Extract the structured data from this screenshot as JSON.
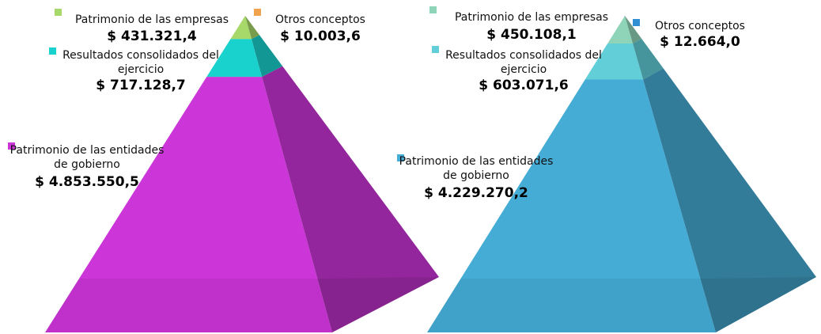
{
  "chart_data": [
    {
      "type": "pyramid",
      "categories": [
        "Otros conceptos",
        "Patrimonio de las empresas",
        "Resultados consolidados del ejercicio",
        "Patrimonio de las entidades de gobierno"
      ],
      "values": [
        10003.6,
        431321.4,
        717128.7,
        4853550.5
      ],
      "value_labels": [
        "$ 10.003,6",
        "$ 431.321,4",
        "$ 717.128,7",
        "$ 4.853.550,5"
      ],
      "colors": [
        "#f0a24e",
        "#a6d86a",
        "#19d2cd",
        "#cc35d8"
      ]
    },
    {
      "type": "pyramid",
      "categories": [
        "Otros conceptos",
        "Patrimonio de las empresas",
        "Resultados consolidados del ejercicio",
        "Patrimonio de las entidades de gobierno"
      ],
      "values": [
        12664.0,
        450108.1,
        603071.6,
        4229270.2
      ],
      "value_labels": [
        "$ 12.664,0",
        "$ 450.108,1",
        "$ 603.071,6",
        "$ 4.229.270,2"
      ],
      "colors": [
        "#2f8fd2",
        "#8fd4b8",
        "#62cfd8",
        "#45acd6"
      ]
    }
  ]
}
